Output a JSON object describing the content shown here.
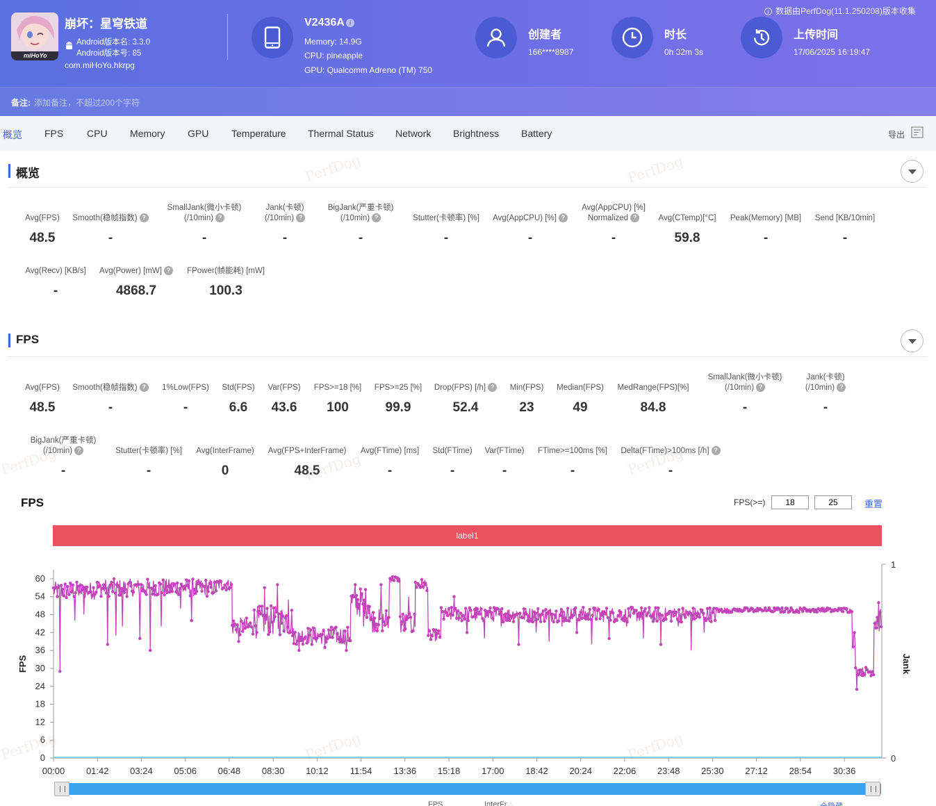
{
  "header": {
    "app_name": "崩坏：星穹铁道",
    "app_logo_text": "miHoYo",
    "android_version_name": "Android版本名: 3.3.0",
    "android_version_code": "Android版本号: 85",
    "package": "com.miHoYo.hkrpg",
    "device_model": "V2436A",
    "device_memory": "Memory: 14.9G",
    "device_cpu": "CPU: pineapple",
    "device_gpu": "GPU: Qualcomm Adreno (TM) 750",
    "creator_label": "创建者",
    "creator_value": "166****8987",
    "duration_label": "时长",
    "duration_value": "0h 32m 3s",
    "upload_label": "上传时间",
    "upload_value": "17/06/2025 16:19:47",
    "collector_note": "数据由PerfDog(11.1.250208)版本收集",
    "note_label": "备注:",
    "note_placeholder": "添加备注，不超过200个字符"
  },
  "tabs": [
    "概览",
    "FPS",
    "CPU",
    "Memory",
    "GPU",
    "Temperature",
    "Thermal Status",
    "Network",
    "Brightness",
    "Battery"
  ],
  "active_tab": "概览",
  "export_label": "导出",
  "watermark": "PerfDog",
  "overview": {
    "title": "概览",
    "row1": [
      {
        "label": [
          "Avg(FPS)"
        ],
        "value": "48.5",
        "help": false
      },
      {
        "label": [
          "Smooth(稳帧指数)"
        ],
        "value": "-",
        "help": true
      },
      {
        "label": [
          "SmallJank(微小卡顿)",
          "(/10min)"
        ],
        "value": "-",
        "help": true
      },
      {
        "label": [
          "Jank(卡顿)",
          "(/10min)"
        ],
        "value": "-",
        "help": true
      },
      {
        "label": [
          "BigJank(严重卡顿)",
          "(/10min)"
        ],
        "value": "-",
        "help": true
      },
      {
        "label": [
          "Stutter(卡顿率) [%]"
        ],
        "value": "-",
        "help": false
      },
      {
        "label": [
          "Avg(AppCPU) [%]"
        ],
        "value": "-",
        "help": true
      },
      {
        "label": [
          "Avg(AppCPU) [%]",
          "Normalized"
        ],
        "value": "-",
        "help": true
      },
      {
        "label": [
          "Avg(CTemp)[°C]"
        ],
        "value": "59.8",
        "help": false
      },
      {
        "label": [
          "Peak(Memory) [MB]"
        ],
        "value": "-",
        "help": false
      },
      {
        "label": [
          "Send [KB/10min]"
        ],
        "value": "-",
        "help": false
      }
    ],
    "row2": [
      {
        "label": [
          "Avg(Recv) [KB/s]"
        ],
        "value": "-",
        "help": false
      },
      {
        "label": [
          "Avg(Power) [mW]"
        ],
        "value": "4868.7",
        "help": true
      },
      {
        "label": [
          "FPower(帧能耗) [mW]"
        ],
        "value": "100.3",
        "help": false
      }
    ]
  },
  "fps_section": {
    "title": "FPS",
    "row1": [
      {
        "label": [
          "Avg(FPS)"
        ],
        "value": "48.5",
        "help": false
      },
      {
        "label": [
          "Smooth(稳帧指数)"
        ],
        "value": "-",
        "help": true
      },
      {
        "label": [
          "1%Low(FPS)"
        ],
        "value": "-",
        "help": false
      },
      {
        "label": [
          "Std(FPS)"
        ],
        "value": "6.6",
        "help": false
      },
      {
        "label": [
          "Var(FPS)"
        ],
        "value": "43.6",
        "help": false
      },
      {
        "label": [
          "FPS>=18 [%]"
        ],
        "value": "100",
        "help": false
      },
      {
        "label": [
          "FPS>=25 [%]"
        ],
        "value": "99.9",
        "help": false
      },
      {
        "label": [
          "Drop(FPS) [/h]"
        ],
        "value": "52.4",
        "help": true
      },
      {
        "label": [
          "Min(FPS)"
        ],
        "value": "23",
        "help": false
      },
      {
        "label": [
          "Median(FPS)"
        ],
        "value": "49",
        "help": false
      },
      {
        "label": [
          "MedRange(FPS)[%]"
        ],
        "value": "84.8",
        "help": false
      },
      {
        "label": [
          "SmallJank(微小卡顿)",
          "(/10min)"
        ],
        "value": "-",
        "help": true
      },
      {
        "label": [
          "Jank(卡顿)",
          "(/10min)"
        ],
        "value": "-",
        "help": true
      }
    ],
    "row2": [
      {
        "label": [
          "BigJank(严重卡顿)",
          "(/10min)"
        ],
        "value": "-",
        "help": true
      },
      {
        "label": [
          "Stutter(卡顿率) [%]"
        ],
        "value": "-",
        "help": false
      },
      {
        "label": [
          "Avg(InterFrame)"
        ],
        "value": "0",
        "help": false
      },
      {
        "label": [
          "Avg(FPS+InterFrame)"
        ],
        "value": "48.5",
        "help": false
      },
      {
        "label": [
          "Avg(FTime) [ms]"
        ],
        "value": "-",
        "help": false
      },
      {
        "label": [
          "Std(FTime)"
        ],
        "value": "-",
        "help": false
      },
      {
        "label": [
          "Var(FTime)"
        ],
        "value": "-",
        "help": false
      },
      {
        "label": [
          "FTime>=100ms [%]"
        ],
        "value": "-",
        "help": false
      },
      {
        "label": [
          "Delta(FTime)>100ms [/h]"
        ],
        "value": "-",
        "help": true
      }
    ]
  },
  "chart": {
    "title": "FPS",
    "threshold_label": "FPS(>=)",
    "threshold_1": "18",
    "threshold_2": "25",
    "reset_label": "重置",
    "label_band": "label1",
    "bottom_text_left": "FPS",
    "bottom_text_mid": "InterFr...",
    "bottom_text_right": "全隐藏"
  },
  "chart_data": {
    "type": "line",
    "ylabel": "FPS",
    "y2label": "Jank",
    "ylim": [
      0,
      63
    ],
    "yticks": [
      0,
      6,
      12,
      18,
      24,
      30,
      36,
      42,
      48,
      54,
      60
    ],
    "y2lim": [
      0,
      1
    ],
    "y2ticks": [
      0,
      1
    ],
    "xlim_seconds": [
      0,
      1923
    ],
    "xticks": [
      "00:00",
      "01:42",
      "03:24",
      "05:06",
      "06:48",
      "08:30",
      "10:12",
      "11:54",
      "13:36",
      "15:18",
      "17:00",
      "18:42",
      "20:24",
      "22:06",
      "23:48",
      "25:30",
      "27:12",
      "28:54",
      "30:36"
    ],
    "colors": {
      "fps": "#c244b8",
      "jank": "#7fd0de",
      "axis": "#999999"
    },
    "series": [
      {
        "name": "FPS",
        "segments": [
          {
            "t0": 0,
            "t1": 100,
            "base": 56,
            "noise": 3,
            "dips": [
              [
                15,
                29
              ],
              [
                50,
                46
              ],
              [
                70,
                48
              ]
            ]
          },
          {
            "t0": 100,
            "t1": 380,
            "base": 57,
            "noise": 3,
            "dips": [
              [
                125,
                38
              ],
              [
                145,
                41
              ],
              [
                160,
                44
              ],
              [
                200,
                40
              ],
              [
                225,
                36
              ],
              [
                250,
                44
              ],
              [
                295,
                50
              ],
              [
                320,
                46
              ]
            ]
          },
          {
            "t0": 380,
            "t1": 415,
            "base": 58,
            "noise": 2,
            "dips": []
          },
          {
            "t0": 415,
            "t1": 460,
            "base": 44,
            "noise": 3,
            "dips": [
              [
                430,
                39
              ]
            ]
          },
          {
            "t0": 460,
            "t1": 555,
            "base": 46,
            "noise": 5,
            "dips": [
              [
                470,
                40
              ],
              [
                490,
                57
              ],
              [
                520,
                58
              ],
              [
                545,
                53
              ]
            ]
          },
          {
            "t0": 555,
            "t1": 650,
            "base": 41,
            "noise": 3,
            "dips": [
              [
                570,
                36
              ],
              [
                600,
                38
              ],
              [
                630,
                37
              ]
            ]
          },
          {
            "t0": 650,
            "t1": 690,
            "base": 41,
            "noise": 3,
            "dips": [
              [
                680,
                36
              ]
            ]
          },
          {
            "t0": 690,
            "t1": 735,
            "base": 52,
            "noise": 5,
            "dips": [
              [
                700,
                58
              ],
              [
                720,
                44
              ]
            ]
          },
          {
            "t0": 735,
            "t1": 780,
            "base": 46,
            "noise": 4,
            "dips": [
              [
                760,
                58
              ]
            ]
          },
          {
            "t0": 780,
            "t1": 805,
            "base": 60,
            "noise": 1,
            "dips": []
          },
          {
            "t0": 805,
            "t1": 840,
            "base": 45,
            "noise": 4,
            "dips": [
              [
                825,
                54
              ]
            ]
          },
          {
            "t0": 840,
            "t1": 870,
            "base": 58,
            "noise": 2,
            "dips": []
          },
          {
            "t0": 870,
            "t1": 900,
            "base": 41,
            "noise": 2,
            "dips": []
          },
          {
            "t0": 900,
            "t1": 1540,
            "base": 48,
            "noise": 2.5,
            "dips": [
              [
                930,
                54
              ],
              [
                960,
                42
              ],
              [
                1000,
                40
              ],
              [
                1040,
                44
              ],
              [
                1080,
                38
              ],
              [
                1120,
                42
              ],
              [
                1150,
                39
              ],
              [
                1180,
                44
              ],
              [
                1215,
                42
              ],
              [
                1250,
                38
              ],
              [
                1290,
                40
              ],
              [
                1330,
                44
              ],
              [
                1370,
                40
              ],
              [
                1410,
                38
              ],
              [
                1450,
                44
              ],
              [
                1480,
                36
              ],
              [
                1510,
                42
              ]
            ]
          },
          {
            "t0": 1540,
            "t1": 1855,
            "base": 49.5,
            "noise": 0.8,
            "dips": []
          },
          {
            "t0": 1855,
            "t1": 1862,
            "base": 40,
            "noise": 3,
            "dips": []
          },
          {
            "t0": 1862,
            "t1": 1905,
            "base": 29,
            "noise": 1.5,
            "dips": [
              [
                1865,
                23
              ]
            ]
          },
          {
            "t0": 1905,
            "t1": 1923,
            "base": 46,
            "noise": 4,
            "dips": [
              [
                1915,
                52
              ]
            ]
          }
        ]
      },
      {
        "name": "Jank",
        "values": [
          0
        ]
      }
    ]
  }
}
